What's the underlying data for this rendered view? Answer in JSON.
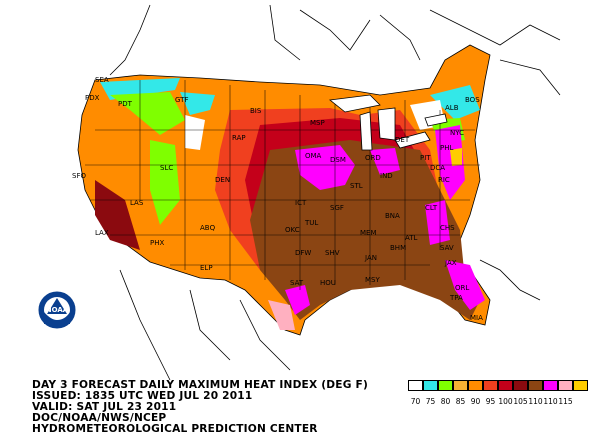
{
  "product": {
    "line1": "DAY 3 FORECAST DAILY MAXIMUM HEAT INDEX (DEG F)",
    "line2": "ISSUED: 1835 UTC WED JUL 20 2011",
    "line3": "VALID: SAT JUL 23 2011",
    "line4": "DOC/NOAA/NWS/NCEP",
    "line5": "HYDROMETEOROLOGICAL PREDICTION CENTER"
  },
  "logo": {
    "text": "NOAA"
  },
  "legend": {
    "items": [
      {
        "label": "70",
        "color": "#ffffff"
      },
      {
        "label": "75",
        "color": "#33e8e8"
      },
      {
        "label": "80",
        "color": "#7fff00"
      },
      {
        "label": "85",
        "color": "#f7b234"
      },
      {
        "label": "90",
        "color": "#ff8c00"
      },
      {
        "label": "95",
        "color": "#f0401f"
      },
      {
        "label": "100",
        "color": "#c4001a"
      },
      {
        "label": "105",
        "color": "#8b0a0f"
      },
      {
        "label": "110",
        "color": "#8b4513"
      },
      {
        "label": "110",
        "color": "#ff00ff"
      },
      {
        "label": "115",
        "color": "#ffb0c0"
      },
      {
        "label": "",
        "color": "#ffcc00"
      }
    ]
  },
  "stations": [
    "PDX",
    "PDT",
    "GTF",
    "BIS",
    "MSP",
    "SEA",
    "DSM",
    "ORD",
    "DET",
    "ALB",
    "BOS",
    "RAP",
    "SFO",
    "SLC",
    "DEN",
    "OMA",
    "STL",
    "IND",
    "PIT",
    "NYC",
    "PHL",
    "DCA",
    "RIC",
    "LAX",
    "LAS",
    "PHX",
    "ABQ",
    "ICT",
    "SGF",
    "TUL",
    "OKC",
    "MEM",
    "BNA",
    "CLT",
    "DFW",
    "SHV",
    "JAN",
    "ATL",
    "CHS",
    "SAV",
    "ELP",
    "SAT",
    "HOU",
    "MSY",
    "JAX",
    "ORL",
    "MIA",
    "TPA",
    "BHM"
  ]
}
